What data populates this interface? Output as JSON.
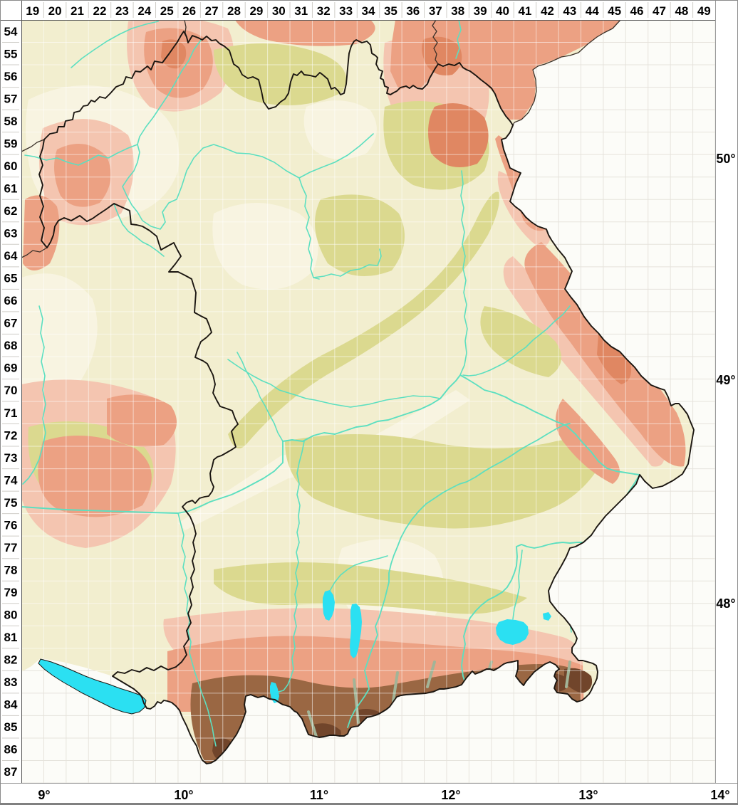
{
  "window": {
    "type": "topographic-grid-map-viewer"
  },
  "grid": {
    "column_labels": [
      "19",
      "20",
      "21",
      "22",
      "23",
      "24",
      "25",
      "26",
      "27",
      "28",
      "29",
      "30",
      "31",
      "32",
      "33",
      "34",
      "35",
      "36",
      "37",
      "38",
      "39",
      "40",
      "41",
      "42",
      "43",
      "44",
      "45",
      "46",
      "47",
      "48",
      "49"
    ],
    "row_labels": [
      "54",
      "55",
      "56",
      "57",
      "58",
      "59",
      "60",
      "61",
      "62",
      "63",
      "64",
      "65",
      "66",
      "67",
      "68",
      "69",
      "70",
      "71",
      "72",
      "73",
      "74",
      "75",
      "76",
      "77",
      "78",
      "79",
      "80",
      "81",
      "82",
      "83",
      "84",
      "85",
      "86",
      "87"
    ]
  },
  "axes": {
    "longitude_labels": [
      "9°",
      "10°",
      "11°",
      "12°",
      "13°",
      "14°"
    ],
    "latitude_labels": [
      "50°",
      "49°",
      "48°"
    ]
  },
  "map": {
    "colors": {
      "background_outside": "#FCFCF8",
      "grid_off_map": "#E6E3DC",
      "grid_on_map": "#FFFFFF",
      "lowland": "#F2EECF",
      "lowland_light": "#F8F4E1",
      "hills_olive": "#DBD98F",
      "upland_salmon": "#ECA183",
      "upland_pink": "#F4C5B0",
      "upland_deep": "#E08762",
      "alpine_brown": "#9A6743",
      "alpine_dark": "#71452B",
      "alpine_valley_green": "#A2B497",
      "river": "#5CDFC0",
      "lake": "#2BE0F2",
      "state_border": "#1B1611",
      "minor_border": "#3A3028",
      "frame_dark": "#555555",
      "frame_gray": "#9A9A9A",
      "label_color": "#000000"
    }
  }
}
